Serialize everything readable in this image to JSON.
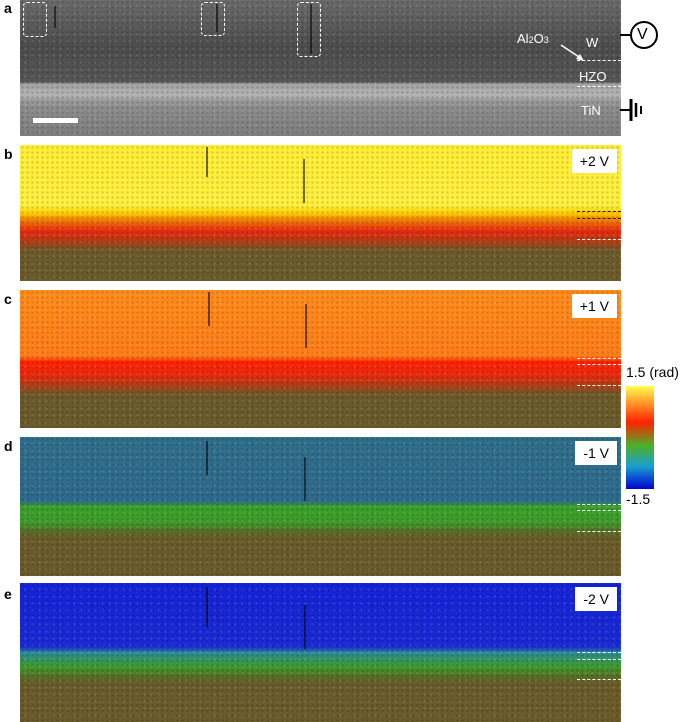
{
  "figure": {
    "panels": [
      {
        "id": "a",
        "letter": "a",
        "kind": "tem"
      },
      {
        "id": "b",
        "letter": "b",
        "kind": "phase",
        "voltage": "+2 V"
      },
      {
        "id": "c",
        "letter": "c",
        "kind": "phase",
        "voltage": "+1 V"
      },
      {
        "id": "d",
        "letter": "d",
        "kind": "phase",
        "voltage": "-1 V"
      },
      {
        "id": "e",
        "letter": "e",
        "kind": "phase",
        "voltage": "-2 V"
      }
    ],
    "layers": {
      "w": "W",
      "al2o3": "Al2O3",
      "hzo": "HZO",
      "tin": "TiN"
    },
    "voltage_symbol": "V",
    "colorbar": {
      "max_label": "1.5 (rad)",
      "min_label": "-1.5"
    },
    "colors": {
      "plus2_top": "#ffee33",
      "plus1_top": "#ff8c1a",
      "minus1_top": "#2f6e8a",
      "minus2_top": "#1522d8",
      "mid_red": "#e82a10",
      "mid_green": "#3e9a2a",
      "bottom": "#6b5a2a"
    }
  }
}
